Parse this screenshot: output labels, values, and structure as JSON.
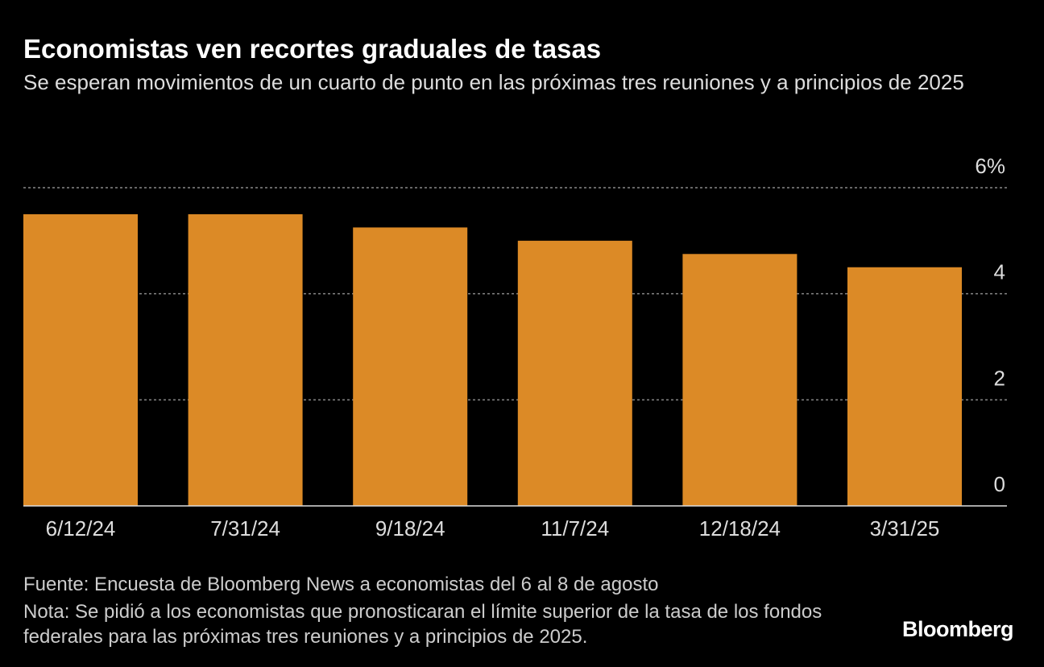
{
  "chart_data": {
    "type": "bar",
    "title": "Economistas ven recortes graduales de tasas",
    "subtitle": "Se esperan movimientos de un cuarto de punto en las próximas tres reuniones y a principios de 2025",
    "categories": [
      "6/12/24",
      "7/31/24",
      "9/18/24",
      "11/7/24",
      "12/18/24",
      "3/31/25"
    ],
    "values": [
      5.5,
      5.5,
      5.25,
      5.0,
      4.75,
      4.5
    ],
    "color": "#dc8a26",
    "ylim": [
      0,
      6
    ],
    "yticks": [
      0,
      2,
      4,
      {
        "value": 6,
        "label": "6%"
      }
    ],
    "grid": true,
    "source": "Fuente: Encuesta de Bloomberg News a economistas del 6 al 8 de agosto",
    "note": "Nota: Se pidió a los economistas que pronosticaran el límite superior de la tasa de los fondos federales para las próximas tres reuniones y a principios de 2025.",
    "brand": "Bloomberg"
  }
}
